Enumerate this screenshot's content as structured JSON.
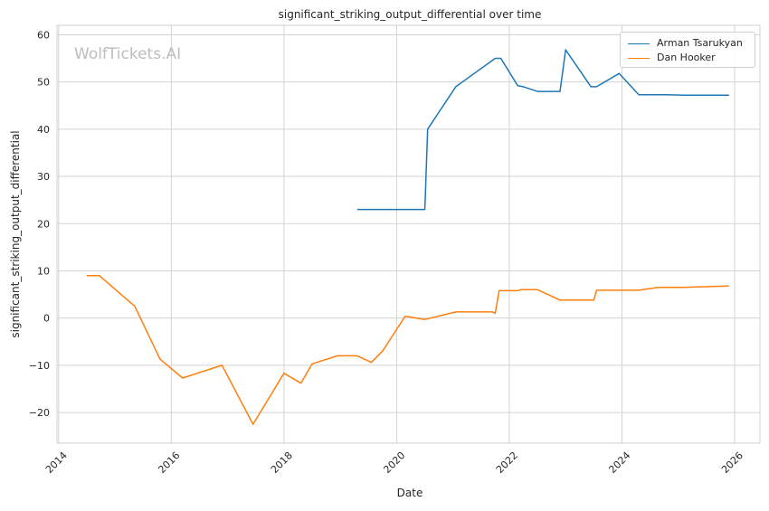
{
  "chart_data": {
    "type": "line",
    "title": "significant_striking_output_differential over time",
    "xlabel": "Date",
    "ylabel": "significant_striking_output_differential",
    "watermark": "WolfTickets.AI",
    "x_type": "year",
    "xlim": [
      2013.97,
      2026.45
    ],
    "ylim": [
      -26.5,
      62
    ],
    "x_ticks": [
      2014,
      2016,
      2018,
      2020,
      2022,
      2024,
      2026
    ],
    "y_ticks": [
      -20,
      -10,
      0,
      10,
      20,
      30,
      40,
      50,
      60
    ],
    "grid": true,
    "legend_position": "top-right",
    "series": [
      {
        "name": "Arman Tsarukyan",
        "color": "#1f77b4",
        "points": [
          [
            2019.3,
            23
          ],
          [
            2020.5,
            23
          ],
          [
            2020.55,
            40
          ],
          [
            2021.05,
            49
          ],
          [
            2021.75,
            55
          ],
          [
            2021.85,
            55
          ],
          [
            2022.15,
            49.2
          ],
          [
            2022.25,
            49
          ],
          [
            2022.5,
            48
          ],
          [
            2022.9,
            48
          ],
          [
            2023.0,
            56.8
          ],
          [
            2023.45,
            49
          ],
          [
            2023.55,
            49
          ],
          [
            2023.95,
            51.8
          ],
          [
            2024.3,
            47.3
          ],
          [
            2024.8,
            47.3
          ],
          [
            2025.1,
            47.2
          ],
          [
            2025.9,
            47.2
          ]
        ]
      },
      {
        "name": "Dan Hooker",
        "color": "#ff7f0e",
        "points": [
          [
            2014.5,
            9
          ],
          [
            2014.72,
            9
          ],
          [
            2015.35,
            2.5
          ],
          [
            2015.8,
            -8.7
          ],
          [
            2016.2,
            -12.7
          ],
          [
            2016.9,
            -10
          ],
          [
            2017.45,
            -22.5
          ],
          [
            2018.0,
            -11.7
          ],
          [
            2018.3,
            -13.8
          ],
          [
            2018.5,
            -9.7
          ],
          [
            2018.95,
            -8
          ],
          [
            2019.3,
            -8
          ],
          [
            2019.55,
            -9.4
          ],
          [
            2019.75,
            -7
          ],
          [
            2020.15,
            0.4
          ],
          [
            2020.5,
            -0.3
          ],
          [
            2021.05,
            1.3
          ],
          [
            2021.7,
            1.3
          ],
          [
            2021.75,
            1.0
          ],
          [
            2021.82,
            5.8
          ],
          [
            2022.15,
            5.8
          ],
          [
            2022.2,
            6.0
          ],
          [
            2022.5,
            6.0
          ],
          [
            2022.9,
            3.8
          ],
          [
            2023.5,
            3.8
          ],
          [
            2023.55,
            5.9
          ],
          [
            2024.3,
            5.9
          ],
          [
            2024.65,
            6.5
          ],
          [
            2025.1,
            6.5
          ],
          [
            2025.9,
            6.8
          ]
        ]
      }
    ]
  }
}
